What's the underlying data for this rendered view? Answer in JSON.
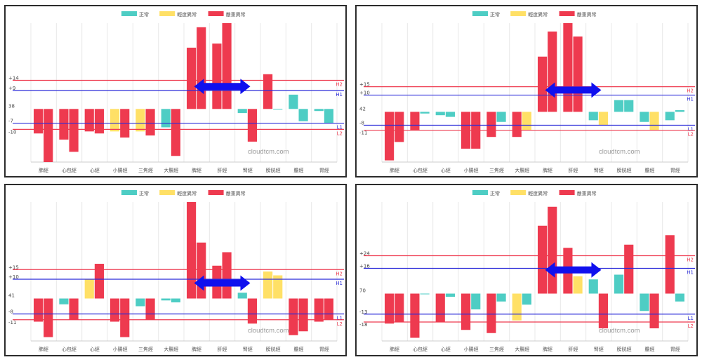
{
  "colors": {
    "normal": "#4ecdc4",
    "mild": "#ffe066",
    "severe": "#ee3a4f",
    "line_high": "#ee3a4f",
    "line_mid": "#2b2bd9",
    "arrow": "#1010ee",
    "grid": "#e8e8e8",
    "axis_text": "#555555"
  },
  "legend": [
    "正常",
    "輕度異常",
    "嚴重異常"
  ],
  "watermark": "cloudtcm.com",
  "chart_data": [
    {
      "type": "bar",
      "categories": [
        "肺經",
        "心包經",
        "心經",
        "小腸經",
        "三焦經",
        "大腸經",
        "脾經",
        "肝經",
        "腎經",
        "膀胱經",
        "膽經",
        "胃經"
      ],
      "axis_ticks": [
        "+14",
        "+9",
        "38",
        "-7",
        "-10"
      ],
      "baseline_label": "38",
      "ref_lines": [
        {
          "value": 14,
          "label": "H2",
          "color": "line_high"
        },
        {
          "value": 9,
          "label": "H1",
          "color": "line_mid"
        },
        {
          "value": -7,
          "label": "L1",
          "color": "line_mid"
        },
        {
          "value": -10,
          "label": "L2",
          "color": "line_high"
        }
      ],
      "ylim": [
        -26,
        42
      ],
      "series": [
        {
          "values": [
            -12,
            -15,
            -11,
            -11,
            -11,
            -9,
            30,
            32,
            -2,
            17,
            7,
            -1
          ]
        },
        {
          "values": [
            -26,
            -21,
            -12,
            -14,
            -13,
            -23,
            40,
            42,
            -16,
            0,
            -6,
            -7
          ]
        }
      ],
      "status": [
        [
          "severe",
          "severe",
          "severe",
          "mild",
          "mild",
          "normal",
          "severe",
          "severe",
          "normal",
          "severe",
          "normal",
          "normal"
        ],
        [
          "severe",
          "severe",
          "severe",
          "severe",
          "severe",
          "severe",
          "severe",
          "severe",
          "severe",
          "normal",
          "normal",
          "normal"
        ]
      ],
      "arrow": {
        "from": 6.4,
        "to": 8.6,
        "y": 11
      }
    },
    {
      "type": "bar",
      "categories": [
        "肺經",
        "心包經",
        "心經",
        "小腸經",
        "三焦經",
        "大腸經",
        "脾經",
        "肝經",
        "腎經",
        "膀胱經",
        "膽經",
        "胃經"
      ],
      "axis_ticks": [
        "+15",
        "+10",
        "42",
        "-8",
        "-11"
      ],
      "baseline_label": "42",
      "ref_lines": [
        {
          "value": 15,
          "label": "H2",
          "color": "line_high"
        },
        {
          "value": 10,
          "label": "H1",
          "color": "line_mid"
        },
        {
          "value": -8,
          "label": "L1",
          "color": "line_mid"
        },
        {
          "value": -11,
          "label": "L2",
          "color": "line_high"
        }
      ],
      "ylim": [
        -30,
        53
      ],
      "series": [
        {
          "values": [
            -29,
            -11,
            -2,
            -22,
            -15,
            -15,
            33,
            53,
            -5,
            7,
            -6,
            -5
          ]
        },
        {
          "values": [
            -18,
            -1,
            -3,
            -22,
            -6,
            -11,
            48,
            45,
            -8,
            7,
            -11,
            1
          ]
        }
      ],
      "status": [
        [
          "severe",
          "severe",
          "normal",
          "severe",
          "severe",
          "severe",
          "severe",
          "severe",
          "normal",
          "normal",
          "normal",
          "normal"
        ],
        [
          "severe",
          "normal",
          "normal",
          "severe",
          "normal",
          "mild",
          "severe",
          "severe",
          "mild",
          "normal",
          "mild",
          "normal"
        ]
      ],
      "arrow": {
        "from": 6.4,
        "to": 8.6,
        "y": 13
      }
    },
    {
      "type": "bar",
      "categories": [
        "肺經",
        "心包經",
        "心經",
        "小腸經",
        "三焦經",
        "大腸經",
        "脾經",
        "肝經",
        "腎經",
        "膀胱經",
        "膽經",
        "胃經"
      ],
      "axis_ticks": [
        "+15",
        "+10",
        "41",
        "-8",
        "-11"
      ],
      "baseline_label": "41",
      "ref_lines": [
        {
          "value": 15,
          "label": "H2",
          "color": "line_high"
        },
        {
          "value": 10,
          "label": "H1",
          "color": "line_mid"
        },
        {
          "value": -8,
          "label": "L1",
          "color": "line_mid"
        },
        {
          "value": -11,
          "label": "L2",
          "color": "line_high"
        }
      ],
      "ylim": [
        -22,
        50
      ],
      "series": [
        {
          "values": [
            -12,
            -3,
            10,
            -12,
            -4,
            -1,
            50,
            17,
            3,
            14,
            -19,
            -12
          ]
        },
        {
          "values": [
            -20,
            -11,
            18,
            -20,
            -11,
            -2,
            29,
            24,
            -13,
            12,
            -17,
            -11
          ]
        }
      ],
      "status": [
        [
          "severe",
          "normal",
          "mild",
          "severe",
          "normal",
          "normal",
          "severe",
          "severe",
          "normal",
          "mild",
          "severe",
          "severe"
        ],
        [
          "severe",
          "severe",
          "severe",
          "severe",
          "severe",
          "normal",
          "severe",
          "severe",
          "severe",
          "mild",
          "severe",
          "severe"
        ]
      ],
      "arrow": {
        "from": 6.4,
        "to": 8.6,
        "y": 8
      }
    },
    {
      "type": "bar",
      "categories": [
        "肺經",
        "心包經",
        "心經",
        "小腸經",
        "三焦經",
        "大腸經",
        "脾經",
        "肝經",
        "腎經",
        "膀胱經",
        "膽經",
        "胃經"
      ],
      "axis_ticks": [
        "+24",
        "+16",
        "70",
        "-13",
        "-18"
      ],
      "baseline_label": "70",
      "ref_lines": [
        {
          "value": 24,
          "label": "H2",
          "color": "line_high"
        },
        {
          "value": 16,
          "label": "H1",
          "color": "line_mid"
        },
        {
          "value": -13,
          "label": "L1",
          "color": "line_mid"
        },
        {
          "value": -18,
          "label": "L2",
          "color": "line_high"
        }
      ],
      "ylim": [
        -30,
        58
      ],
      "series": [
        {
          "values": [
            -19,
            -28,
            -18,
            -23,
            -25,
            -17,
            43,
            29,
            9,
            12,
            -11,
            37
          ]
        },
        {
          "values": [
            -18,
            0,
            -2,
            -10,
            -5,
            -7,
            55,
            11,
            -22,
            31,
            -22,
            -5
          ]
        }
      ],
      "status": [
        [
          "severe",
          "severe",
          "severe",
          "severe",
          "severe",
          "mild",
          "severe",
          "severe",
          "normal",
          "normal",
          "normal",
          "severe"
        ],
        [
          "severe",
          "normal",
          "normal",
          "normal",
          "normal",
          "normal",
          "severe",
          "mild",
          "severe",
          "severe",
          "severe",
          "normal"
        ]
      ],
      "arrow": {
        "from": 6.4,
        "to": 8.6,
        "y": 15
      }
    }
  ]
}
